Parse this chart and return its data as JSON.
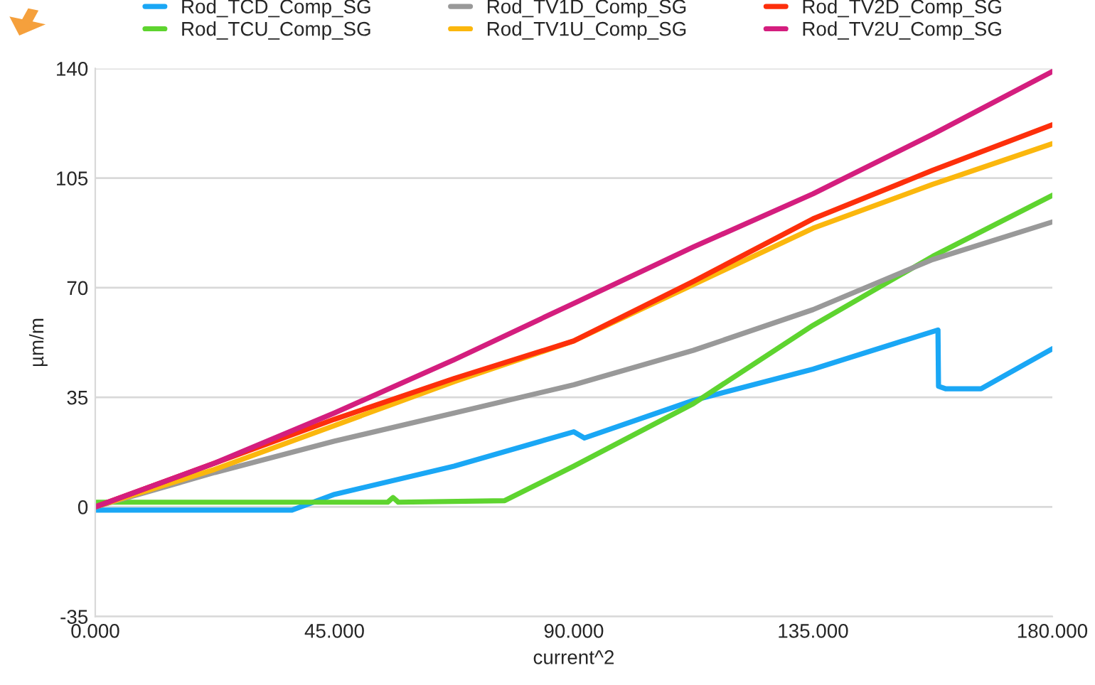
{
  "chart_data": {
    "type": "line",
    "xlabel": "current^2",
    "ylabel": "µm/m",
    "xlim": [
      0,
      180
    ],
    "xticks": [
      {
        "value": 0,
        "label": "0.000"
      },
      {
        "value": 45,
        "label": "45.000"
      },
      {
        "value": 90,
        "label": "90.000"
      },
      {
        "value": 135,
        "label": "135.000"
      },
      {
        "value": 180,
        "label": "180.000"
      }
    ],
    "ylim": [
      -35,
      140
    ],
    "yticks": [
      -35,
      0,
      35,
      70,
      105,
      140
    ],
    "grid": "y",
    "legend": "top",
    "marker": "none",
    "line_style": "solid",
    "series": [
      {
        "name": "Rod_TCD_Comp_SG",
        "color": "#1aa7f5",
        "x": [
          0,
          37,
          45,
          67.5,
          90,
          92,
          112.5,
          135,
          150,
          158.5,
          158.6,
          160,
          166.6,
          180
        ],
        "values": [
          -1,
          -1,
          4,
          13,
          24,
          22,
          34,
          44,
          52,
          56.5,
          38.5,
          37.7,
          37.7,
          50.5
        ]
      },
      {
        "name": "Rod_TCU_Comp_SG",
        "color": "#5ed42f",
        "x": [
          0,
          55,
          56,
          57,
          77,
          90,
          112.5,
          135,
          157.5,
          180
        ],
        "values": [
          1.5,
          1.5,
          3,
          1.5,
          2,
          13,
          33,
          58,
          80,
          99.5
        ]
      },
      {
        "name": "Rod_TV1D_Comp_SG",
        "color": "#999999",
        "x": [
          0,
          22.5,
          45,
          67.5,
          90,
          112.5,
          135,
          157.5,
          180
        ],
        "values": [
          0,
          11,
          21,
          30,
          39,
          50,
          63,
          79,
          91
        ]
      },
      {
        "name": "Rod_TV1U_Comp_SG",
        "color": "#fbb70d",
        "x": [
          0,
          22.5,
          45,
          67.5,
          90,
          112.5,
          135,
          157.5,
          180
        ],
        "values": [
          0,
          12,
          26,
          40,
          53,
          71,
          89,
          103,
          116
        ]
      },
      {
        "name": "Rod_TV2D_Comp_SG",
        "color": "#fd2f0b",
        "x": [
          0,
          22.5,
          45,
          67.5,
          90,
          112.5,
          135,
          157.5,
          180
        ],
        "values": [
          0,
          14,
          28,
          41,
          53,
          72,
          92,
          107.5,
          122
        ]
      },
      {
        "name": "Rod_TV2U_Comp_SG",
        "color": "#d41e7e",
        "x": [
          0,
          22.5,
          45,
          67.5,
          90,
          112.5,
          135,
          157.5,
          180
        ],
        "values": [
          0,
          14,
          30,
          47,
          65,
          83,
          100,
          119,
          139
        ]
      }
    ]
  }
}
